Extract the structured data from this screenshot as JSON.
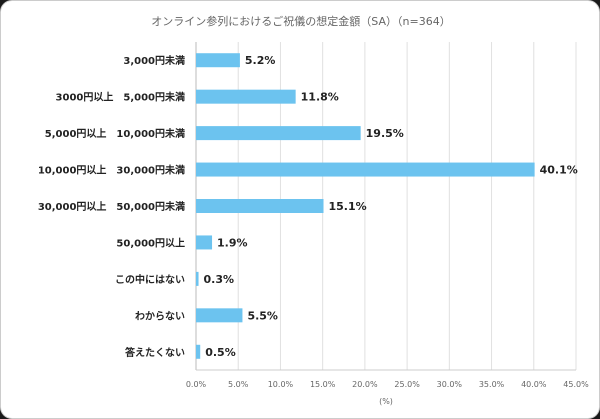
{
  "chart_data": {
    "type": "bar",
    "orientation": "horizontal",
    "title": "オンライン参列におけるご祝儀の想定金額（SA）（n=364）",
    "xlabel": "(%)",
    "ylabel": "",
    "xlim": [
      0,
      45
    ],
    "xticks": [
      "0.0%",
      "5.0%",
      "10.0%",
      "15.0%",
      "20.0%",
      "25.0%",
      "30.0%",
      "35.0%",
      "40.0%",
      "45.0%"
    ],
    "grid": true,
    "bar_color": "#6cc3ef",
    "categories": [
      "3,000円未満",
      "3000円以上　5,000円未満",
      "5,000円以上　10,000円未満",
      "10,000円以上　30,000円未満",
      "30,000円以上　50,000円未満",
      "50,000円以上",
      "この中にはない",
      "わからない",
      "答えたくない"
    ],
    "values": [
      5.2,
      11.8,
      19.5,
      40.1,
      15.1,
      1.9,
      0.3,
      5.5,
      0.5
    ],
    "data_labels": [
      "5.2%",
      "11.8%",
      "19.5%",
      "40.1%",
      "15.1%",
      "1.9%",
      "0.3%",
      "5.5%",
      "0.5%"
    ]
  }
}
